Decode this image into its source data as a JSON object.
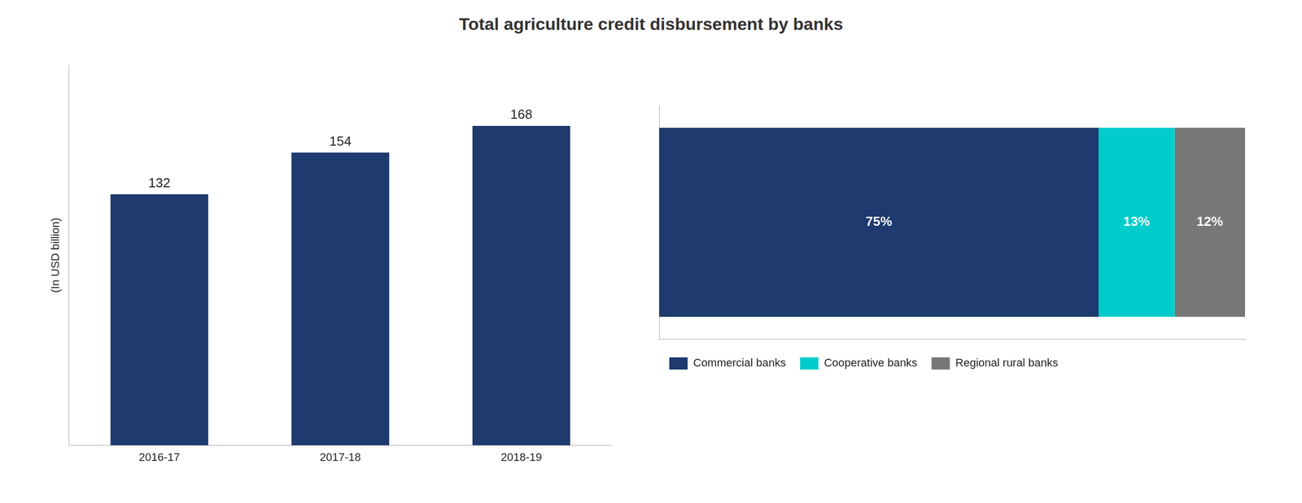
{
  "chart_data": [
    {
      "type": "bar",
      "title": "Total agriculture credit disbursement by banks",
      "ylabel": "(In USD billion)",
      "categories": [
        "2016-17",
        "2017-18",
        "2018-19"
      ],
      "values": [
        132,
        154,
        168
      ],
      "color": "#1e3a6e",
      "ylim": [
        0,
        200
      ],
      "grid": false,
      "tick_labels": "x",
      "data_labels": true,
      "legend": false
    },
    {
      "type": "bar",
      "orientation": "horizontal",
      "stacked": true,
      "categories": [
        null
      ],
      "series": [
        {
          "name": "Commercial banks",
          "color": "#1e3a6e",
          "values": [
            75
          ],
          "value_labels": [
            "75%"
          ]
        },
        {
          "name": "Cooperative banks",
          "color": "#00cccc",
          "values": [
            13
          ],
          "value_labels": [
            "13%"
          ]
        },
        {
          "name": "Regional rural banks",
          "color": "#777777",
          "values": [
            12
          ],
          "value_labels": [
            "12%"
          ]
        }
      ],
      "xlim": [
        0,
        100
      ],
      "grid": false,
      "tick_labels": false,
      "data_labels": true,
      "legend": "bottom"
    }
  ]
}
